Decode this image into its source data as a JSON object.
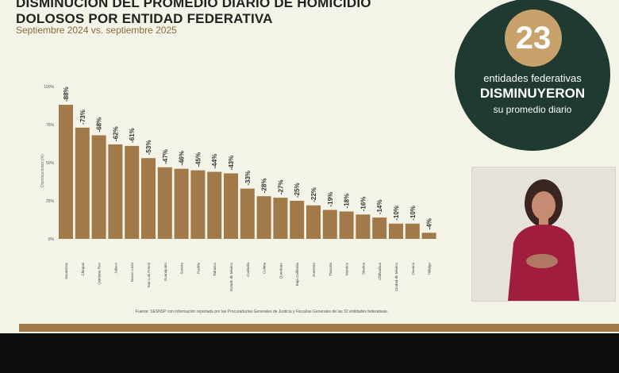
{
  "slide": {
    "title": "DISMINUCIÓN DEL PROMEDIO DIARIO DE HOMICIDIO DOLOSOS POR ENTIDAD FEDERATIVA",
    "subtitle": "Septiembre 2024 vs. septiembre 2025",
    "source": "Fuente: SESNSP con información reportada por las Procuradurías Generales de Justicia y Fiscalías Generales de las 32 entidades federativas.",
    "colors": {
      "bar": "#a27a4a",
      "badge_bg": "#1f3a31",
      "badge_circle": "#c9a16a"
    }
  },
  "badge": {
    "number": "23",
    "line1": "entidades federativas",
    "line2": "DISMINUYERON",
    "line3": "su promedio diario"
  },
  "chart_data": {
    "type": "bar",
    "ylabel": "Disminuciones (%)",
    "ylim": [
      0,
      100
    ],
    "yticks": [
      "0%",
      "25%",
      "50%",
      "75%",
      "100%"
    ],
    "grid": false,
    "categories": [
      "Zacatecas",
      "Chiapas",
      "Quintana Roo",
      "Jalisco",
      "Nuevo León",
      "San Luis Potosí",
      "Guanajuato",
      "Sonora",
      "Puebla",
      "Tabasco",
      "Estado de México",
      "Coahuila",
      "Colima",
      "Querétaro",
      "Baja California",
      "Guerrero",
      "Tlaxcala",
      "Morelos",
      "Sinaloa",
      "Chihuahua",
      "Ciudad de México",
      "Oaxaca",
      "Hidalgo"
    ],
    "values": [
      88,
      73,
      68,
      62,
      61,
      53,
      47,
      46,
      45,
      44,
      43,
      33,
      28,
      27,
      25,
      22,
      19,
      18,
      16,
      14,
      10,
      10,
      4
    ],
    "labels": [
      "-88%",
      "-73%",
      "-68%",
      "-62%",
      "-61%",
      "-53%",
      "-47%",
      "-46%",
      "-45%",
      "-44%",
      "-43%",
      "-33%",
      "-28%",
      "-27%",
      "-25%",
      "-22%",
      "-19%",
      "-18%",
      "-16%",
      "-14%",
      "-10%",
      "-10%",
      "-4%"
    ]
  }
}
